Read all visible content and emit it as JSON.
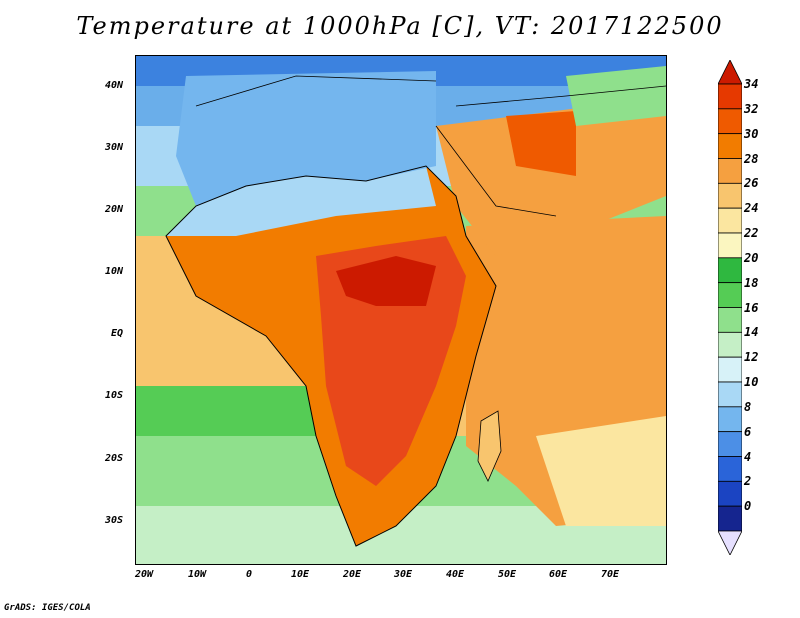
{
  "title": "Temperature at 1000hPa [C], VT: 2017122500",
  "footer": "GrADS: IGES/COLA",
  "lat_ticks": [
    "40N",
    "30N",
    "20N",
    "10N",
    "EQ",
    "10S",
    "20S",
    "30S"
  ],
  "lon_ticks": [
    "20W",
    "10W",
    "0",
    "10E",
    "20E",
    "30E",
    "40E",
    "50E",
    "60E",
    "70E"
  ],
  "colorbar": {
    "labels": [
      "34",
      "32",
      "30",
      "28",
      "26",
      "24",
      "22",
      "20",
      "18",
      "16",
      "14",
      "12",
      "10",
      "8",
      "6",
      "4",
      "2",
      "0"
    ],
    "colors": [
      "#cc1a00",
      "#e63900",
      "#ef5a00",
      "#f27c00",
      "#f5a040",
      "#f8c56e",
      "#fbe6a0",
      "#fbf6c0",
      "#2fb840",
      "#55cc55",
      "#8fe08c",
      "#c5efc6",
      "#d7f2f8",
      "#a9d8f5",
      "#74b6ee",
      "#4c8fe6",
      "#2a64d9",
      "#1b44c2",
      "#15258f",
      "#0c0c6a"
    ]
  },
  "colors": {
    "ocean_warm": "#f5b24e",
    "ocean_cool": "#5aa0e8",
    "land_hot": "#e8481a",
    "land_mid": "#f58a2a",
    "land_green": "#4fc35a"
  }
}
